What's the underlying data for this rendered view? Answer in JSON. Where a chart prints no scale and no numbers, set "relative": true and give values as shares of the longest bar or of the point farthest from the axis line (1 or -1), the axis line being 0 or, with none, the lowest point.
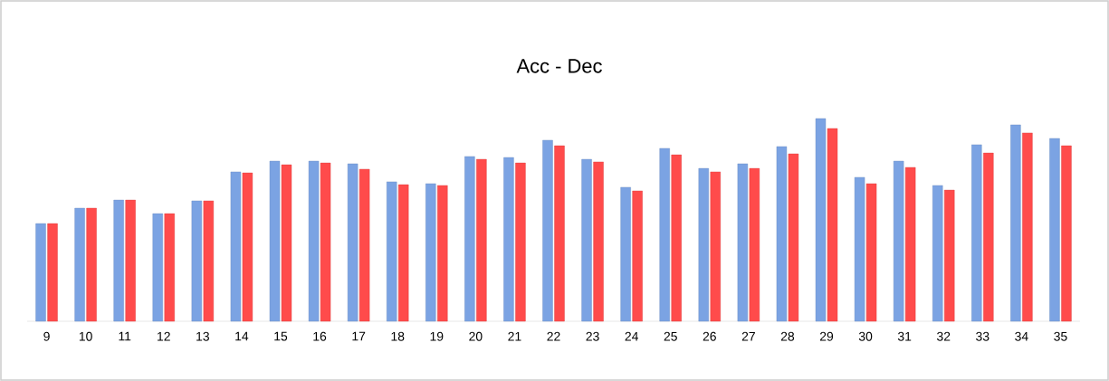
{
  "chart_data": {
    "type": "bar",
    "title": "Acc - Dec",
    "relative": true,
    "categories": [
      "9",
      "10",
      "11",
      "12",
      "13",
      "14",
      "15",
      "16",
      "17",
      "18",
      "19",
      "20",
      "21",
      "22",
      "23",
      "24",
      "25",
      "26",
      "27",
      "28",
      "29",
      "30",
      "31",
      "32",
      "33",
      "34",
      "35"
    ],
    "series": [
      {
        "color": "#7ba3e3",
        "values": [
          0.482,
          0.558,
          0.598,
          0.531,
          0.594,
          0.737,
          0.79,
          0.79,
          0.777,
          0.688,
          0.679,
          0.813,
          0.808,
          0.893,
          0.799,
          0.661,
          0.853,
          0.754,
          0.777,
          0.862,
          1.0,
          0.71,
          0.79,
          0.67,
          0.871,
          0.969,
          0.902
        ]
      },
      {
        "color": "#ff4b4b",
        "values": [
          0.482,
          0.558,
          0.598,
          0.531,
          0.594,
          0.732,
          0.772,
          0.781,
          0.75,
          0.674,
          0.67,
          0.799,
          0.781,
          0.866,
          0.786,
          0.643,
          0.821,
          0.737,
          0.754,
          0.826,
          0.951,
          0.679,
          0.759,
          0.647,
          0.83,
          0.929,
          0.866
        ]
      }
    ]
  }
}
